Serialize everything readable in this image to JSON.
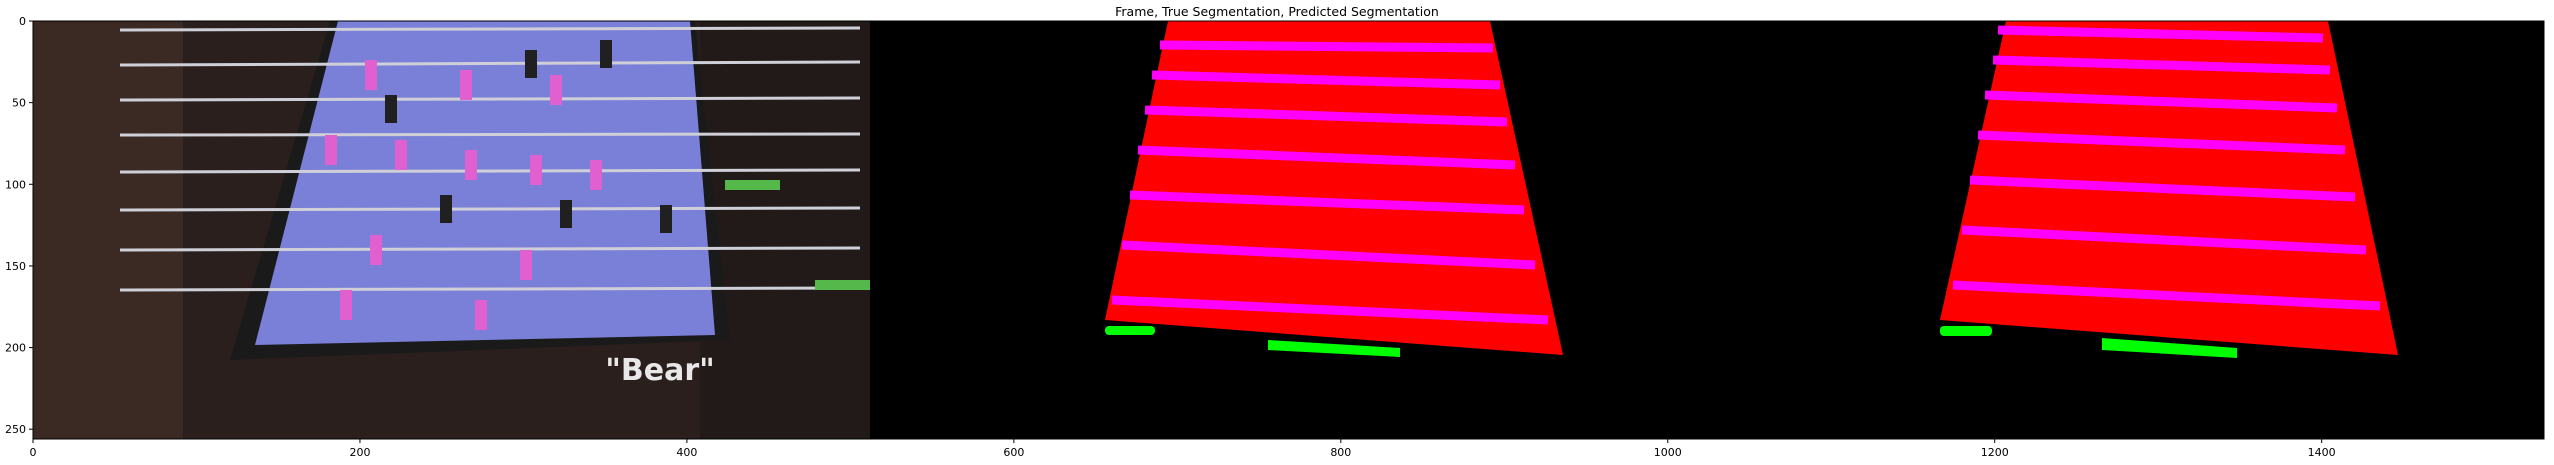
{
  "title": "Frame, True Segmentation, Predicted Segmentation",
  "axes": {
    "x_ticks": [
      0,
      200,
      400,
      600,
      800,
      1000,
      1200,
      1400
    ],
    "y_ticks": [
      0,
      50,
      100,
      150,
      200,
      250
    ],
    "x_range": [
      0,
      1536
    ],
    "y_range": [
      0,
      256
    ]
  },
  "image": {
    "panels": [
      "frame",
      "true-segmentation",
      "predicted-segmentation"
    ],
    "panel_width_units": 512,
    "overlay_text": "\"Bear\"",
    "colors": {
      "background": "#000000",
      "table_region": "#ff0000",
      "rods": "#ff00ff",
      "goal_markers": "#00ff00",
      "field": "#7a80d8"
    }
  }
}
